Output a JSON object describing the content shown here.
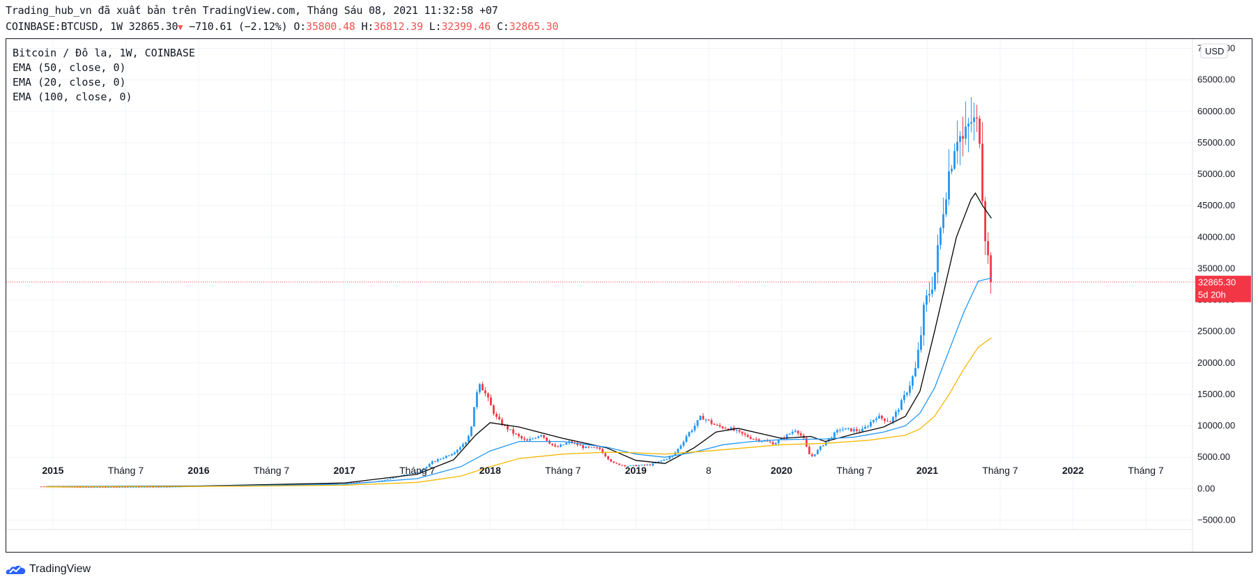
{
  "header": {
    "line1": "Trading_hub_vn đã xuất bản trên TradingView.com, Tháng Sáu 08, 2021 11:32:58 +07",
    "symbol": "COINBASE:BTCUSD, 1W",
    "last": "32865.30",
    "change": "−710.61 (−2.12%)",
    "o_label": "O:",
    "o": "35800.48",
    "h_label": "H:",
    "h": "36812.39",
    "l_label": "L:",
    "l": "32399.46",
    "c_label": "C:",
    "c": "32865.30"
  },
  "legend": {
    "title": "Bitcoin / Đô la, 1W, COINBASE",
    "ema1": "EMA (50, close, 0)",
    "ema2": "EMA (20, close, 0)",
    "ema3": "EMA (100, close, 0)"
  },
  "price_tag": {
    "price": "32865.30",
    "countdown": "5d 20h"
  },
  "currency": "USD",
  "footer": {
    "brand": "TradingView"
  },
  "colors": {
    "up": "#2196f3",
    "down": "#f23645",
    "ema50": "#2196f3",
    "ema20": "#000000",
    "ema100": "#f5b700",
    "grid": "#f0f3fa"
  },
  "chart_data": {
    "type": "candlestick",
    "y_ticks": [
      -5000,
      0,
      5000,
      10000,
      15000,
      20000,
      25000,
      30000,
      35000,
      40000,
      45000,
      50000,
      55000,
      60000,
      65000,
      70000
    ],
    "y_tick_labels": [
      "−5000.00",
      "0.00",
      "5000.00",
      "10000.00",
      "15000.00",
      "20000.00",
      "25000.00",
      "30000.00",
      "35000.00",
      "40000.00",
      "45000.00",
      "50000.00",
      "55000.00",
      "60000.00",
      "65000.00",
      "70000.00"
    ],
    "ylim": [
      -6500,
      71500
    ],
    "x_ticks": [
      {
        "t": 2015.0,
        "label": "2015",
        "bold": true
      },
      {
        "t": 2015.5,
        "label": "Tháng 7",
        "bold": false
      },
      {
        "t": 2016.0,
        "label": "2016",
        "bold": true
      },
      {
        "t": 2016.5,
        "label": "Tháng 7",
        "bold": false
      },
      {
        "t": 2017.0,
        "label": "2017",
        "bold": true
      },
      {
        "t": 2017.5,
        "label": "Tháng 7",
        "bold": false
      },
      {
        "t": 2018.0,
        "label": "2018",
        "bold": true
      },
      {
        "t": 2018.5,
        "label": "Tháng 7",
        "bold": false
      },
      {
        "t": 2019.0,
        "label": "2019",
        "bold": true
      },
      {
        "t": 2019.5,
        "label": "8",
        "bold": false
      },
      {
        "t": 2020.0,
        "label": "2020",
        "bold": true
      },
      {
        "t": 2020.5,
        "label": "Tháng 7",
        "bold": false
      },
      {
        "t": 2021.0,
        "label": "2021",
        "bold": true
      },
      {
        "t": 2021.5,
        "label": "Tháng 7",
        "bold": false
      },
      {
        "t": 2022.0,
        "label": "2022",
        "bold": true
      },
      {
        "t": 2022.5,
        "label": "Tháng 7",
        "bold": false
      }
    ],
    "anchors": [
      [
        2014.92,
        350
      ],
      [
        2015.2,
        250
      ],
      [
        2015.5,
        270
      ],
      [
        2015.8,
        300
      ],
      [
        2016.0,
        430
      ],
      [
        2016.3,
        420
      ],
      [
        2016.5,
        650
      ],
      [
        2016.8,
        700
      ],
      [
        2017.0,
        950
      ],
      [
        2017.2,
        1100
      ],
      [
        2017.4,
        2200
      ],
      [
        2017.5,
        2600
      ],
      [
        2017.6,
        4200
      ],
      [
        2017.75,
        5800
      ],
      [
        2017.85,
        8000
      ],
      [
        2017.92,
        17500
      ],
      [
        2017.98,
        14500
      ],
      [
        2018.05,
        11000
      ],
      [
        2018.15,
        9000
      ],
      [
        2018.25,
        7500
      ],
      [
        2018.35,
        8700
      ],
      [
        2018.45,
        6500
      ],
      [
        2018.55,
        7500
      ],
      [
        2018.65,
        6500
      ],
      [
        2018.75,
        6400
      ],
      [
        2018.85,
        4000
      ],
      [
        2018.95,
        3600
      ],
      [
        2019.1,
        3800
      ],
      [
        2019.25,
        5200
      ],
      [
        2019.35,
        8500
      ],
      [
        2019.45,
        11500
      ],
      [
        2019.55,
        10000
      ],
      [
        2019.65,
        9500
      ],
      [
        2019.8,
        8000
      ],
      [
        2019.95,
        7200
      ],
      [
        2020.1,
        9500
      ],
      [
        2020.15,
        8000
      ],
      [
        2020.2,
        5000
      ],
      [
        2020.3,
        7500
      ],
      [
        2020.4,
        9500
      ],
      [
        2020.55,
        9200
      ],
      [
        2020.65,
        11500
      ],
      [
        2020.75,
        10700
      ],
      [
        2020.85,
        15000
      ],
      [
        2020.92,
        19000
      ],
      [
        2020.98,
        29000
      ],
      [
        2021.05,
        34000
      ],
      [
        2021.12,
        47000
      ],
      [
        2021.2,
        57000
      ],
      [
        2021.25,
        55000
      ],
      [
        2021.3,
        58500
      ],
      [
        2021.36,
        57000
      ],
      [
        2021.38,
        47000
      ],
      [
        2021.41,
        37000
      ],
      [
        2021.43,
        35800
      ],
      [
        2021.44,
        32865
      ]
    ],
    "ema_series": [
      {
        "name": "EMA (20, close, 0)",
        "color": "#000000",
        "points": [
          [
            2014.95,
            320
          ],
          [
            2016.0,
            420
          ],
          [
            2017.0,
            900
          ],
          [
            2017.5,
            2300
          ],
          [
            2017.75,
            4600
          ],
          [
            2017.9,
            8500
          ],
          [
            2018.0,
            10500
          ],
          [
            2018.2,
            9800
          ],
          [
            2018.5,
            8000
          ],
          [
            2018.8,
            6500
          ],
          [
            2019.0,
            4500
          ],
          [
            2019.2,
            4000
          ],
          [
            2019.4,
            6500
          ],
          [
            2019.55,
            9000
          ],
          [
            2019.7,
            9600
          ],
          [
            2020.0,
            8000
          ],
          [
            2020.2,
            8300
          ],
          [
            2020.3,
            7500
          ],
          [
            2020.5,
            8700
          ],
          [
            2020.7,
            9800
          ],
          [
            2020.85,
            11500
          ],
          [
            2020.95,
            15500
          ],
          [
            2021.05,
            25000
          ],
          [
            2021.2,
            40000
          ],
          [
            2021.3,
            46000
          ],
          [
            2021.33,
            47000
          ],
          [
            2021.38,
            45000
          ],
          [
            2021.44,
            43000
          ]
        ]
      },
      {
        "name": "EMA (50, close, 0)",
        "color": "#2196f3",
        "points": [
          [
            2014.95,
            300
          ],
          [
            2016.0,
            380
          ],
          [
            2017.0,
            700
          ],
          [
            2017.5,
            1600
          ],
          [
            2017.8,
            3500
          ],
          [
            2018.0,
            6000
          ],
          [
            2018.2,
            7500
          ],
          [
            2018.5,
            7500
          ],
          [
            2018.8,
            6600
          ],
          [
            2019.0,
            5500
          ],
          [
            2019.2,
            5000
          ],
          [
            2019.4,
            5800
          ],
          [
            2019.6,
            7000
          ],
          [
            2019.8,
            7500
          ],
          [
            2020.0,
            7800
          ],
          [
            2020.3,
            7900
          ],
          [
            2020.5,
            8200
          ],
          [
            2020.7,
            9000
          ],
          [
            2020.85,
            10000
          ],
          [
            2020.95,
            12000
          ],
          [
            2021.05,
            16000
          ],
          [
            2021.15,
            22000
          ],
          [
            2021.25,
            28000
          ],
          [
            2021.35,
            33000
          ],
          [
            2021.44,
            33500
          ]
        ]
      },
      {
        "name": "EMA (100, close, 0)",
        "color": "#f5b700",
        "points": [
          [
            2014.95,
            280
          ],
          [
            2016.0,
            350
          ],
          [
            2017.0,
            550
          ],
          [
            2017.5,
            1000
          ],
          [
            2017.8,
            2000
          ],
          [
            2018.0,
            3500
          ],
          [
            2018.2,
            4800
          ],
          [
            2018.5,
            5500
          ],
          [
            2018.8,
            5800
          ],
          [
            2019.0,
            5700
          ],
          [
            2019.2,
            5500
          ],
          [
            2019.5,
            6000
          ],
          [
            2019.8,
            6600
          ],
          [
            2020.0,
            7000
          ],
          [
            2020.3,
            7200
          ],
          [
            2020.6,
            7700
          ],
          [
            2020.85,
            8500
          ],
          [
            2020.95,
            9500
          ],
          [
            2021.05,
            11500
          ],
          [
            2021.15,
            15000
          ],
          [
            2021.25,
            19000
          ],
          [
            2021.35,
            22500
          ],
          [
            2021.44,
            24000
          ]
        ]
      }
    ],
    "last_price": 32865.3
  }
}
